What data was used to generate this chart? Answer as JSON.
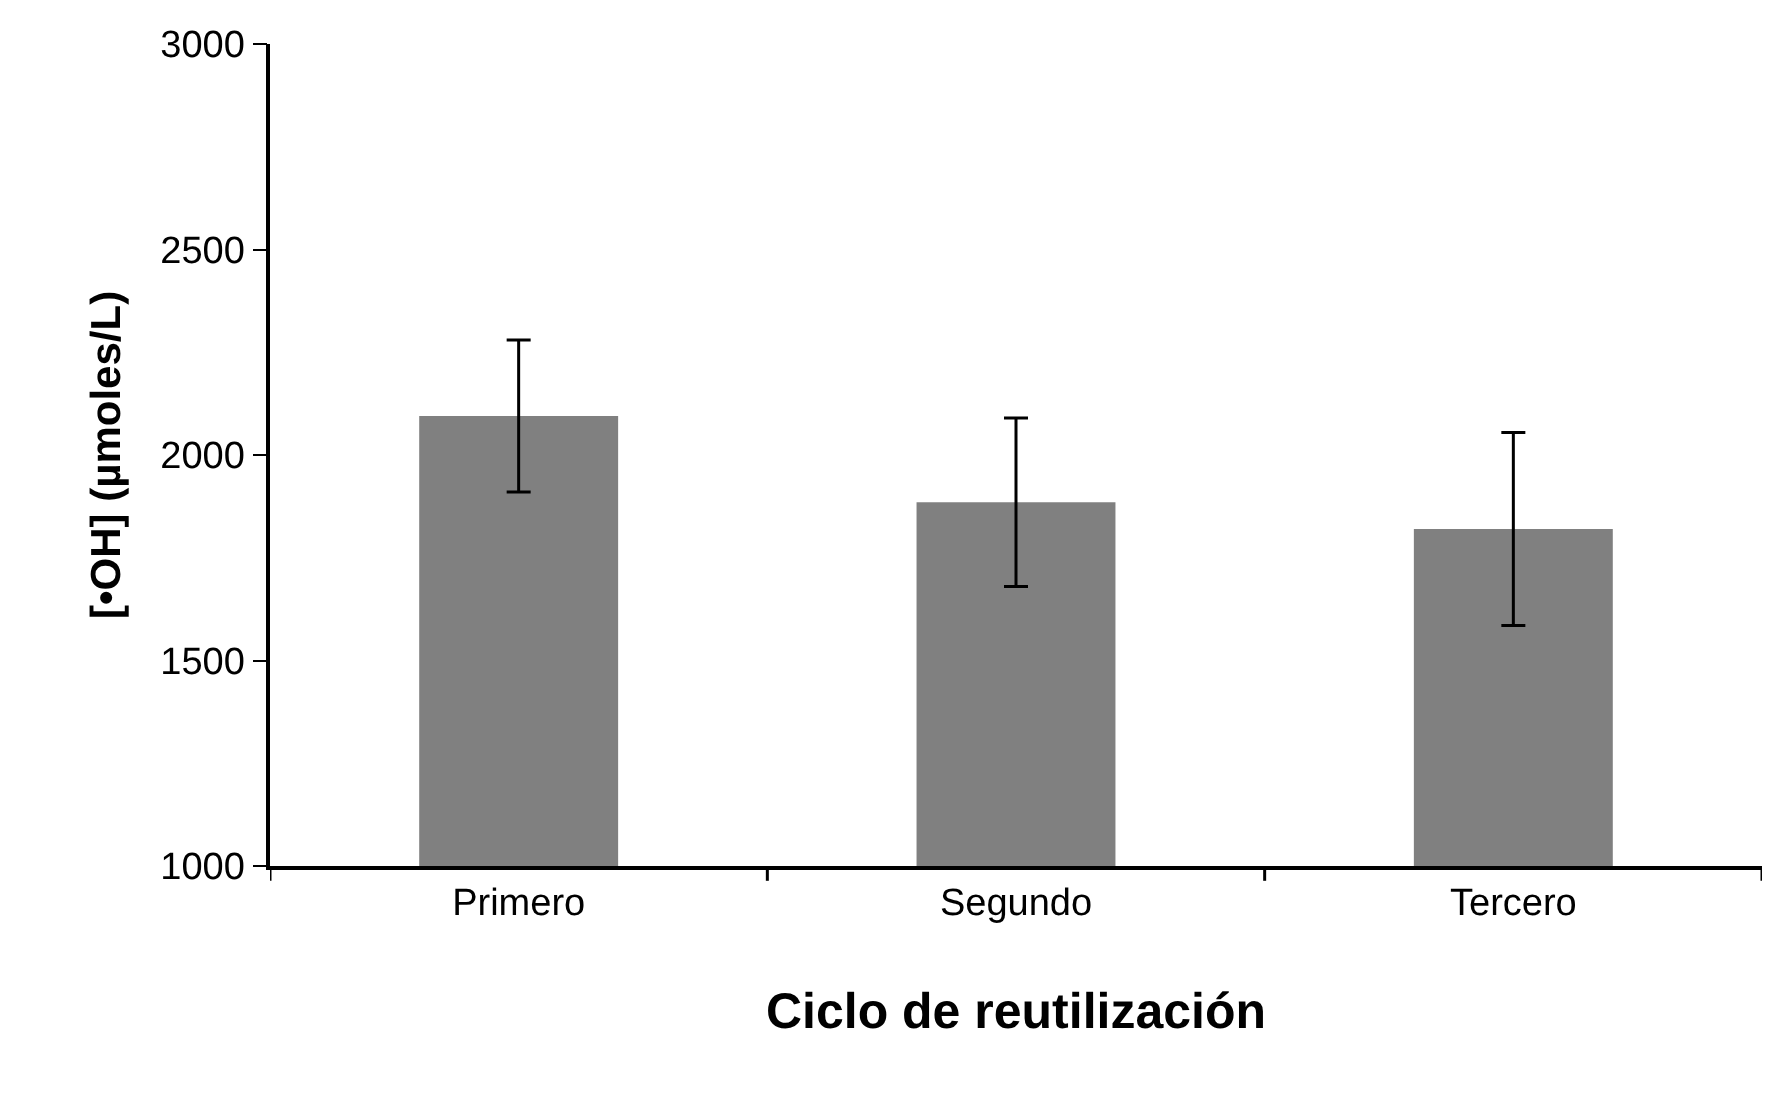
{
  "chart_data": {
    "type": "bar",
    "xlabel": "Ciclo de reutilización",
    "ylabel": "[•OH] (µmoles/L)",
    "categories": [
      "Primero",
      "Segundo",
      "Tercero"
    ],
    "values": [
      2095,
      1885,
      1820
    ],
    "errors": [
      185,
      205,
      235
    ],
    "color": "#808080",
    "ylim": [
      1000,
      3000
    ],
    "yticks": [
      1000,
      1500,
      2000,
      2500,
      3000
    ],
    "grid": false
  }
}
